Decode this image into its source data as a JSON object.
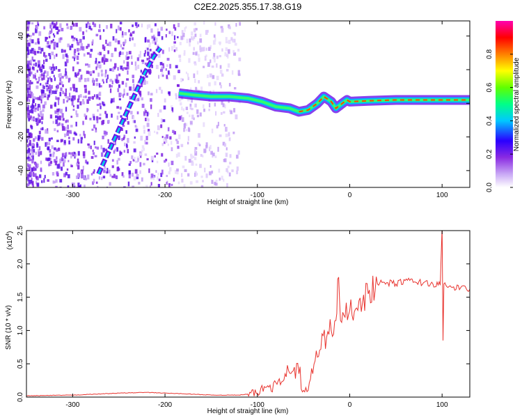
{
  "title": "C2E2.2025.355.17.38.G19",
  "chart_data": [
    {
      "type": "heatmap",
      "xlabel": "Height of straight line (km)",
      "ylabel": "Frequency (Hz)",
      "xlim": [
        -350,
        130
      ],
      "ylim": [
        -50,
        49
      ],
      "xticks": [
        -300,
        -200,
        -100,
        0,
        100
      ],
      "yticks": [
        -40,
        -20,
        0,
        20,
        40
      ],
      "colorbar": {
        "label": "Normalized spectral amplitude",
        "range": [
          0,
          1
        ],
        "ticks": [
          "0.0",
          "0.2",
          "0.4",
          "0.6",
          "0.8"
        ],
        "colors": [
          "#ffffff",
          "#8a2be2",
          "#4b00ff",
          "#0000ff",
          "#00ffff",
          "#00ff00",
          "#ffff00",
          "#ff8000",
          "#ff0000",
          "#ff00b0"
        ]
      },
      "signal_track": {
        "x": [
          -185,
          -170,
          -150,
          -130,
          -110,
          -95,
          -80,
          -65,
          -55,
          -45,
          -35,
          -28,
          -20,
          -15,
          -8,
          -3,
          0,
          20,
          50,
          80,
          100,
          130
        ],
        "y": [
          6,
          5,
          4,
          4,
          3,
          1,
          -2,
          -3,
          -5,
          -4,
          0,
          4,
          1,
          -3,
          0,
          2,
          1,
          1.5,
          2,
          2,
          2,
          2
        ]
      },
      "rising_track": {
        "x": [
          -272,
          -262,
          -252,
          -242,
          -232,
          -222,
          -212,
          -205
        ],
        "y": [
          -42,
          -30,
          -18,
          -6,
          6,
          18,
          28,
          33
        ]
      }
    },
    {
      "type": "line",
      "xlabel": "Height of straight line (km)",
      "ylabel": "SNR (10 * v/v)",
      "y_scale_label": "(x10^4)",
      "y_scale_base": "(x10",
      "y_scale_exp": "4",
      "xlim": [
        -350,
        130
      ],
      "ylim": [
        0,
        2.5
      ],
      "xticks": [
        -300,
        -200,
        -100,
        0,
        100
      ],
      "yticks": [
        "0.0",
        "0.5",
        "1.0",
        "1.5",
        "2.0",
        "2.5"
      ],
      "series": [
        {
          "name": "SNR",
          "color": "#e8322d",
          "x": [
            -350,
            -300,
            -250,
            -220,
            -180,
            -150,
            -120,
            -100,
            -90,
            -80,
            -70,
            -60,
            -55,
            -50,
            -45,
            -40,
            -35,
            -30,
            -25,
            -20,
            -15,
            -12,
            -10,
            -5,
            0,
            10,
            20,
            30,
            40,
            50,
            60,
            70,
            80,
            90,
            98,
            100,
            101,
            102,
            105,
            110,
            120,
            130
          ],
          "y": [
            0.02,
            0.03,
            0.06,
            0.07,
            0.05,
            0.03,
            0.03,
            0.06,
            0.15,
            0.22,
            0.35,
            0.45,
            0.35,
            0.1,
            0.1,
            0.35,
            0.6,
            0.95,
            0.9,
            1.0,
            1.15,
            1.8,
            1.15,
            1.2,
            1.3,
            1.45,
            1.55,
            1.7,
            1.72,
            1.7,
            1.75,
            1.73,
            1.72,
            1.7,
            1.68,
            2.55,
            0.85,
            1.7,
            1.66,
            1.65,
            1.64,
            1.62
          ]
        }
      ]
    }
  ]
}
